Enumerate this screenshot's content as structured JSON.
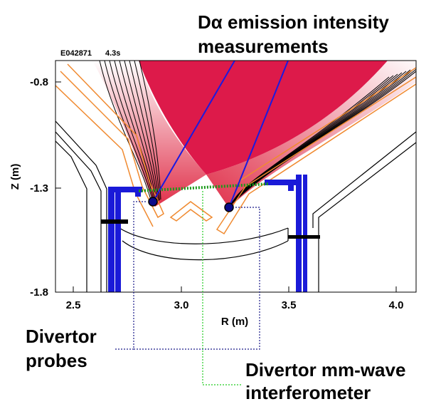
{
  "header": {
    "shot": "E042871",
    "time": "4.3s"
  },
  "axes": {
    "xlabel": "R (m)",
    "ylabel": "Z (m)",
    "xticks": [
      "2.5",
      "3.0",
      "3.5",
      "4.0"
    ],
    "yticks": [
      "-0.8",
      "-1.3",
      "-1.8"
    ]
  },
  "labels": {
    "d_alpha": [
      "Dα emission intensity",
      "measurements"
    ],
    "probes": [
      "Divertor",
      "probes"
    ],
    "interferometer": [
      "Divertor mm-wave",
      "interferometer"
    ]
  }
}
